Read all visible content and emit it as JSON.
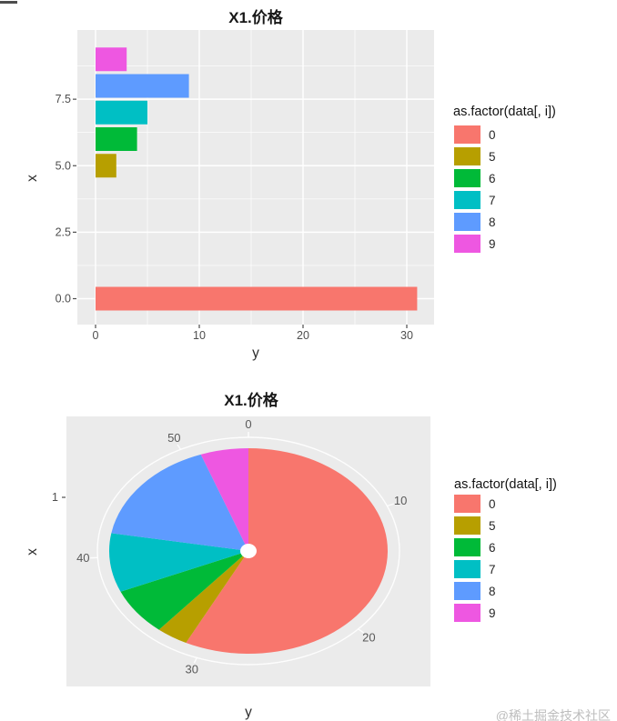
{
  "page": {
    "watermark": "@稀土掘金技术社区"
  },
  "legend": {
    "title": "as.factor(data[, i])",
    "entries": [
      {
        "label": "0",
        "color": "#F8766D"
      },
      {
        "label": "5",
        "color": "#B79F00"
      },
      {
        "label": "6",
        "color": "#00BA38"
      },
      {
        "label": "7",
        "color": "#00BFC4"
      },
      {
        "label": "8",
        "color": "#5E9BFF"
      },
      {
        "label": "9",
        "color": "#EE57E1"
      }
    ]
  },
  "chart_data": [
    {
      "type": "bar",
      "orientation": "horizontal",
      "title": "X1.价格",
      "xlabel": "y",
      "ylabel": "x",
      "legend_title": "as.factor(data[, i])",
      "legend_position": "right",
      "categories": [
        "0",
        "5",
        "6",
        "7",
        "8",
        "9"
      ],
      "positions": [
        0,
        5,
        6,
        7,
        8,
        9
      ],
      "values": [
        31,
        2,
        4,
        5,
        9,
        3
      ],
      "x_ticks": [
        0,
        10,
        20,
        30
      ],
      "x_minor_ticks": [
        5,
        15,
        25
      ],
      "y_ticks": [
        0,
        2.5,
        5,
        7.5
      ],
      "y_tick_labels": [
        "0.0",
        "2.5",
        "5.0",
        "7.5"
      ],
      "y_minor_ticks": [
        1.25,
        3.75,
        6.25,
        8.75
      ],
      "xlim": [
        -1.55,
        32.55
      ],
      "ylim": [
        -0.95,
        9.95
      ],
      "panel_background": "#EBEBEB",
      "grid_color": "#FFFFFF"
    },
    {
      "type": "pie",
      "title": "X1.价格",
      "xlabel": "y",
      "ylabel": "x",
      "legend_title": "as.factor(data[, i])",
      "legend_position": "right",
      "categories": [
        "0",
        "5",
        "6",
        "7",
        "8",
        "9"
      ],
      "values": [
        31,
        2,
        4,
        5,
        9,
        3
      ],
      "total": 54,
      "start_angle_deg": 0,
      "direction": "clockwise",
      "angle_ticks": [
        0,
        10,
        20,
        30,
        40,
        50
      ],
      "radial_ticks": [
        "1"
      ],
      "panel_background": "#EBEBEB",
      "grid_color": "#FFFFFF"
    }
  ]
}
